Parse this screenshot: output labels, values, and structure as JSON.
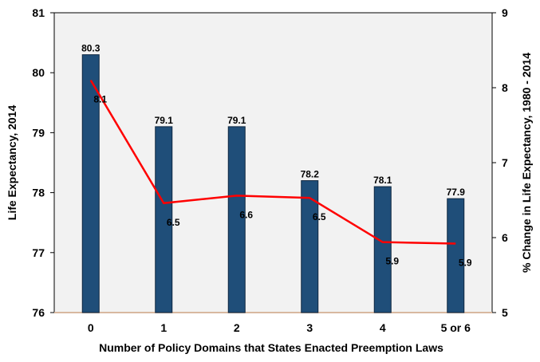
{
  "chart_data": {
    "type": "bar",
    "categories": [
      "0",
      "1",
      "2",
      "3",
      "4",
      "5 or 6"
    ],
    "xlabel": "Number of Policy Domains that States Enacted Preemption Laws",
    "ylabel": "Life Expectancy, 2014",
    "y2label": "% Change in Life Expectancy, 1980 - 2014",
    "ylim": [
      76,
      81
    ],
    "y2lim": [
      5,
      9
    ],
    "yticks": [
      76,
      77,
      78,
      79,
      80,
      81
    ],
    "y2ticks": [
      5,
      6,
      7,
      8,
      9
    ],
    "grid": false,
    "series": [
      {
        "type": "bar",
        "axis": "left",
        "values": [
          80.3,
          79.1,
          79.1,
          78.2,
          78.1,
          77.9
        ],
        "labels": [
          "80.3",
          "79.1",
          "79.1",
          "78.2",
          "78.1",
          "77.9"
        ],
        "color": "#1f4e79"
      },
      {
        "type": "line",
        "axis": "right",
        "values": [
          8.1,
          6.46,
          6.56,
          6.53,
          5.94,
          5.92
        ],
        "labels": [
          "8.1",
          "6.5",
          "6.6",
          "6.5",
          "5.9",
          "5.9"
        ],
        "color": "#ff0000"
      }
    ]
  }
}
